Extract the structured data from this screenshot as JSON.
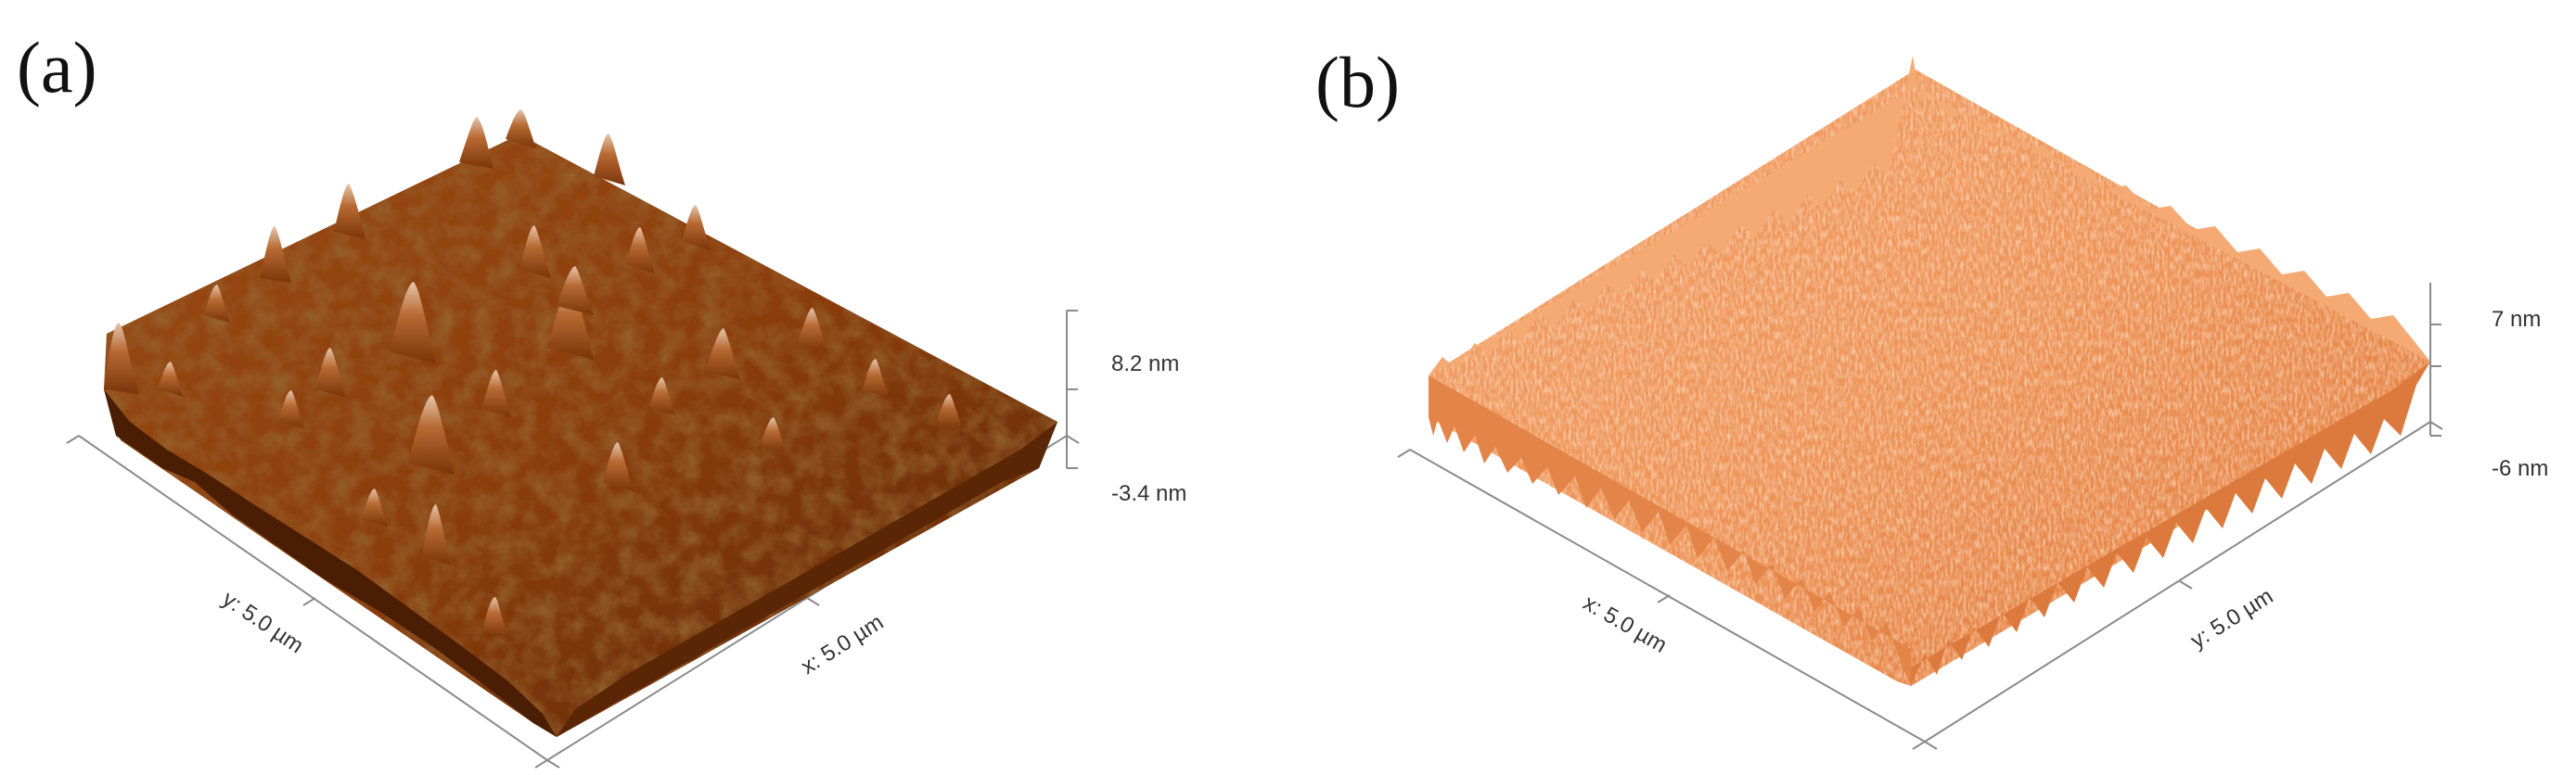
{
  "panels": [
    {
      "label": "(a)",
      "axis_x": "x: 5.0 µm",
      "axis_y": "y: 5.0 µm",
      "z_max": "8.2 nm",
      "z_min": "-3.4 nm",
      "colors": {
        "shadow": "#4a1e04",
        "base": "#8b3d0c",
        "mid": "#b85c18",
        "highlight": "#e8c0a0"
      }
    },
    {
      "label": "(b)",
      "axis_x": "x: 5.0 µm",
      "axis_y": "y: 5.0 µm",
      "z_max": "7 nm",
      "z_min": "-6 nm",
      "colors": {
        "shadow": "#c9652a",
        "base": "#e8894a",
        "mid": "#f4a66e",
        "highlight": "#ffd9bd"
      }
    }
  ]
}
